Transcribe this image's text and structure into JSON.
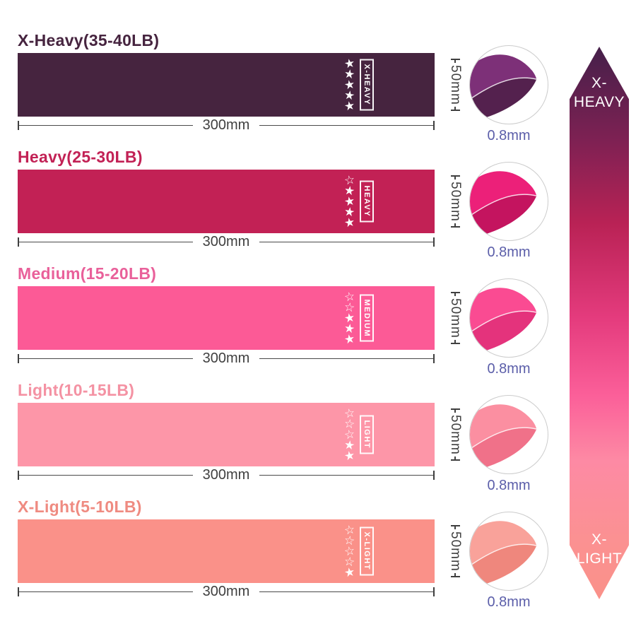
{
  "icons": {
    "star_filled_glyph": "★",
    "star_outline_glyph": "☆"
  },
  "dimensions": {
    "line_color": "#3f3f3f",
    "thickness_color": "#5b5ea9"
  },
  "rows": [
    {
      "title": "X-Heavy(35-40LB)",
      "title_color": "#46243f",
      "band_color": "#46243f",
      "label": "X-HEAVY",
      "stars_outline": 0,
      "stars_filled": 5,
      "width_label": "300mm",
      "height_label": "50mm",
      "thickness_label": "0.8mm",
      "photo_main": "#7d3078",
      "photo_shade": "#54214e"
    },
    {
      "title": "Heavy(25-30LB)",
      "title_color": "#c22155",
      "band_color": "#c22155",
      "label": "HEAVY",
      "stars_outline": 1,
      "stars_filled": 4,
      "width_label": "300mm",
      "height_label": "50mm",
      "thickness_label": "0.8mm",
      "photo_main": "#ec2079",
      "photo_shade": "#c4145f"
    },
    {
      "title": "Medium(15-20LB)",
      "title_color": "#e9609a",
      "band_color": "#fc5a96",
      "label": "MEDIUM",
      "stars_outline": 2,
      "stars_filled": 3,
      "width_label": "300mm",
      "height_label": "50mm",
      "thickness_label": "0.8mm",
      "photo_main": "#fa4b92",
      "photo_shade": "#e4337c"
    },
    {
      "title": "Light(10-15LB)",
      "title_color": "#f492a3",
      "band_color": "#fd96a8",
      "label": "LIGHT",
      "stars_outline": 3,
      "stars_filled": 2,
      "width_label": "300mm",
      "height_label": "50mm",
      "thickness_label": "0.8mm",
      "photo_main": "#fb8fa1",
      "photo_shade": "#f07189"
    },
    {
      "title": "X-Light(5-10LB)",
      "title_color": "#ef8b81",
      "band_color": "#fa9189",
      "label": "X-LIGHT",
      "stars_outline": 4,
      "stars_filled": 1,
      "width_label": "300mm",
      "height_label": "50mm",
      "thickness_label": "0.8mm",
      "photo_main": "#f9a29a",
      "photo_shade": "#ef877d"
    }
  ],
  "arrow": {
    "top_line1": "X-",
    "top_line2": "HEAVY",
    "bottom_line1": "X-",
    "bottom_line2": "LIGHT",
    "text_color": "#ffffff",
    "gradient": [
      [
        "0%",
        "#45204a"
      ],
      [
        "17%",
        "#7e2153"
      ],
      [
        "32%",
        "#b92255"
      ],
      [
        "49%",
        "#e43b7d"
      ],
      [
        "63%",
        "#fb5f99"
      ],
      [
        "75%",
        "#fd8aa4"
      ],
      [
        "89%",
        "#fb9192"
      ],
      [
        "100%",
        "#fa9189"
      ]
    ]
  }
}
